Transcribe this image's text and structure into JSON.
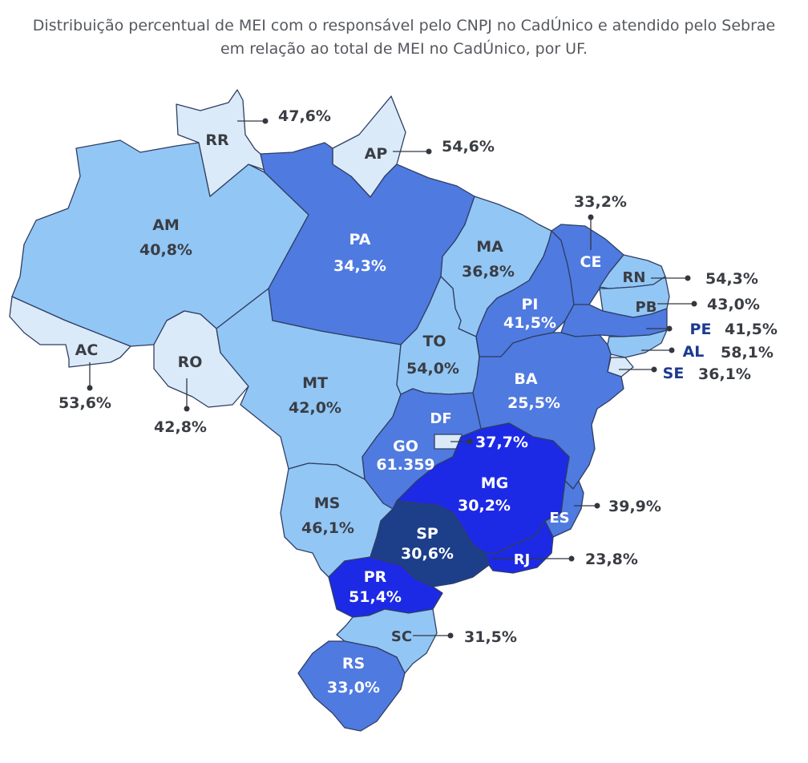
{
  "title": {
    "line1": "Distribuição percentual de MEI com o responsável pelo CNPJ no CadÚnico e atendido pelo Sebrae",
    "line2": "em relação ao total de MEI no CadÚnico, por UF."
  },
  "colors": {
    "very_light": "#dbeaf8",
    "light": "#92c6f5",
    "medium": "#4f7ae0",
    "bright": "#1c2ae6",
    "dark": "#1d3f8a",
    "border": "#2f3e62",
    "text_dark": "#3a3d44",
    "text_blue": "#1d3a8f"
  },
  "states": [
    {
      "uf": "RR",
      "value": "47,6%"
    },
    {
      "uf": "AP",
      "value": "54,6%"
    },
    {
      "uf": "AM",
      "value": "40,8%"
    },
    {
      "uf": "PA",
      "value": "34,3%"
    },
    {
      "uf": "MA",
      "value": "36,8%"
    },
    {
      "uf": "CE",
      "value": "33,2%"
    },
    {
      "uf": "RN",
      "value": "54,3%"
    },
    {
      "uf": "PB",
      "value": "43,0%"
    },
    {
      "uf": "PE",
      "value": "41,5%"
    },
    {
      "uf": "AL",
      "value": "58,1%"
    },
    {
      "uf": "SE",
      "value": "36,1%"
    },
    {
      "uf": "PI",
      "value": "41,5%"
    },
    {
      "uf": "AC",
      "value": "53,6%"
    },
    {
      "uf": "RO",
      "value": "42,8%"
    },
    {
      "uf": "MT",
      "value": "42,0%"
    },
    {
      "uf": "TO",
      "value": "54,0%"
    },
    {
      "uf": "BA",
      "value": "25,5%"
    },
    {
      "uf": "DF",
      "value": "37,7%"
    },
    {
      "uf": "GO",
      "value": "61.359"
    },
    {
      "uf": "MG",
      "value": "30,2%"
    },
    {
      "uf": "ES",
      "value": "39,9%"
    },
    {
      "uf": "MS",
      "value": "46,1%"
    },
    {
      "uf": "SP",
      "value": "30,6%"
    },
    {
      "uf": "RJ",
      "value": "23,8%"
    },
    {
      "uf": "PR",
      "value": "51,4%"
    },
    {
      "uf": "SC",
      "value": "31,5%"
    },
    {
      "uf": "RS",
      "value": "33,0%"
    }
  ]
}
